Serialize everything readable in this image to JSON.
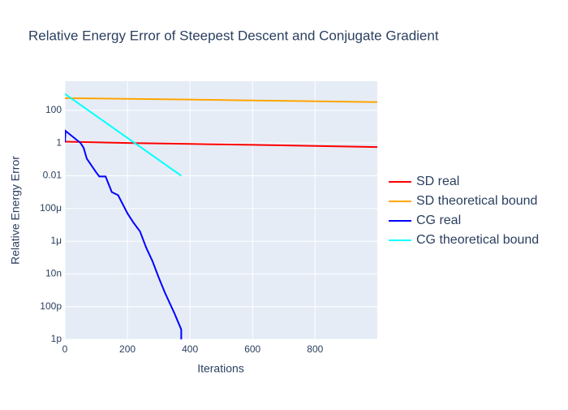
{
  "chart_data": {
    "type": "line",
    "title": "Relative Energy Error of Steepest Descent and Conjugate Gradient",
    "x_label": "Iterations",
    "y_label": "Relative Energy Error",
    "log_y": true,
    "grid": true,
    "legend": "right",
    "xlim": [
      0,
      999
    ],
    "xticks": [
      0,
      200,
      400,
      600,
      800
    ],
    "ylim": [
      1e-12,
      6000
    ],
    "yticks": [
      {
        "value": 1e-12,
        "label": "1p"
      },
      {
        "value": 1e-10,
        "label": "100p"
      },
      {
        "value": 1e-08,
        "label": "10n"
      },
      {
        "value": 1e-06,
        "label": "1μ"
      },
      {
        "value": 0.0001,
        "label": "100μ"
      },
      0.01,
      1,
      100
    ],
    "series": [
      {
        "name": "SD real",
        "color": "#ff0000",
        "x": [
          0,
          200,
          400,
          600,
          800,
          999
        ],
        "values": [
          1.2,
          1.0,
          0.88,
          0.77,
          0.66,
          0.57
        ]
      },
      {
        "name": "SD theoretical bound",
        "color": "#ffa500",
        "x": [
          0,
          200,
          400,
          600,
          800,
          999
        ],
        "values": [
          550,
          500,
          450,
          400,
          355,
          315
        ]
      },
      {
        "name": "CG real",
        "color": "#0000ff",
        "x": [
          0,
          2,
          50,
          60,
          70,
          100,
          110,
          130,
          150,
          170,
          200,
          220,
          240,
          260,
          280,
          300,
          320,
          350,
          372,
          372
        ],
        "values": [
          1.1,
          5.5,
          1,
          0.5,
          0.11,
          0.016,
          0.009,
          0.009,
          0.001,
          0.00065,
          5e-05,
          1.3e-05,
          4e-06,
          4e-07,
          6e-08,
          6e-09,
          7e-10,
          4e-11,
          4e-12,
          1e-13
        ]
      },
      {
        "name": "CG theoretical bound",
        "color": "#00ffff",
        "x": [
          0,
          372
        ],
        "values": [
          1000,
          0.01
        ]
      }
    ]
  }
}
